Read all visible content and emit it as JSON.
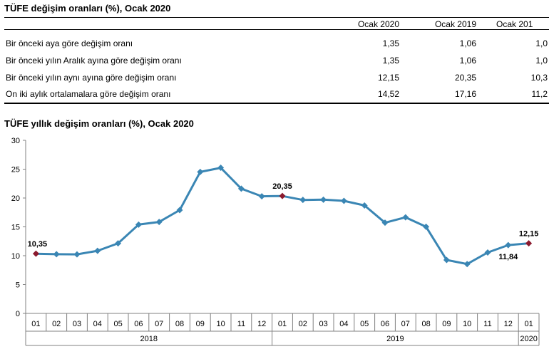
{
  "table": {
    "title": "TÜFE değişim oranları (%), Ocak 2020",
    "columns": [
      "Ocak 2020",
      "Ocak 2019",
      "Ocak 201"
    ],
    "rows": [
      {
        "label": "Bir önceki aya göre değişim oranı",
        "values": [
          "1,35",
          "1,06",
          "1,0"
        ]
      },
      {
        "label": "Bir önceki yılın Aralık ayına göre değişim oranı",
        "values": [
          "1,35",
          "1,06",
          "1,0"
        ]
      },
      {
        "label": "Bir önceki yılın aynı ayına göre değişim oranı",
        "values": [
          "12,15",
          "20,35",
          "10,3"
        ]
      },
      {
        "label": "On iki aylık ortalamalara göre değişim oranı",
        "values": [
          "14,52",
          "17,16",
          "11,2"
        ]
      }
    ]
  },
  "chart_data": {
    "type": "line",
    "title": "TÜFE yıllık değişim oranları (%), Ocak 2020",
    "x": [
      "01",
      "02",
      "03",
      "04",
      "05",
      "06",
      "07",
      "08",
      "09",
      "10",
      "11",
      "12",
      "01",
      "02",
      "03",
      "04",
      "05",
      "06",
      "07",
      "08",
      "09",
      "10",
      "11",
      "12",
      "01"
    ],
    "years": [
      {
        "label": "2018",
        "start": 0,
        "end": 11
      },
      {
        "label": "2019",
        "start": 12,
        "end": 23
      },
      {
        "label": "2020",
        "start": 24,
        "end": 24
      }
    ],
    "values": [
      10.35,
      10.26,
      10.23,
      10.85,
      12.15,
      15.39,
      15.85,
      17.9,
      24.52,
      25.24,
      21.62,
      20.3,
      20.35,
      19.67,
      19.71,
      19.5,
      18.71,
      15.72,
      16.65,
      15.01,
      9.26,
      8.55,
      10.56,
      11.84,
      12.15
    ],
    "ylim": [
      0,
      30
    ],
    "yticks": [
      0,
      5,
      10,
      15,
      20,
      25,
      30
    ],
    "annotations": [
      {
        "index": 0,
        "text": "10,35",
        "highlight": true
      },
      {
        "index": 12,
        "text": "20,35",
        "highlight": true
      },
      {
        "index": 23,
        "text": "11,84",
        "highlight": false
      },
      {
        "index": 24,
        "text": "12,15",
        "highlight": true
      }
    ],
    "colors": {
      "line": "#3a86b4",
      "marker": "#3a86b4",
      "highlight": "#8b1a2e"
    }
  }
}
